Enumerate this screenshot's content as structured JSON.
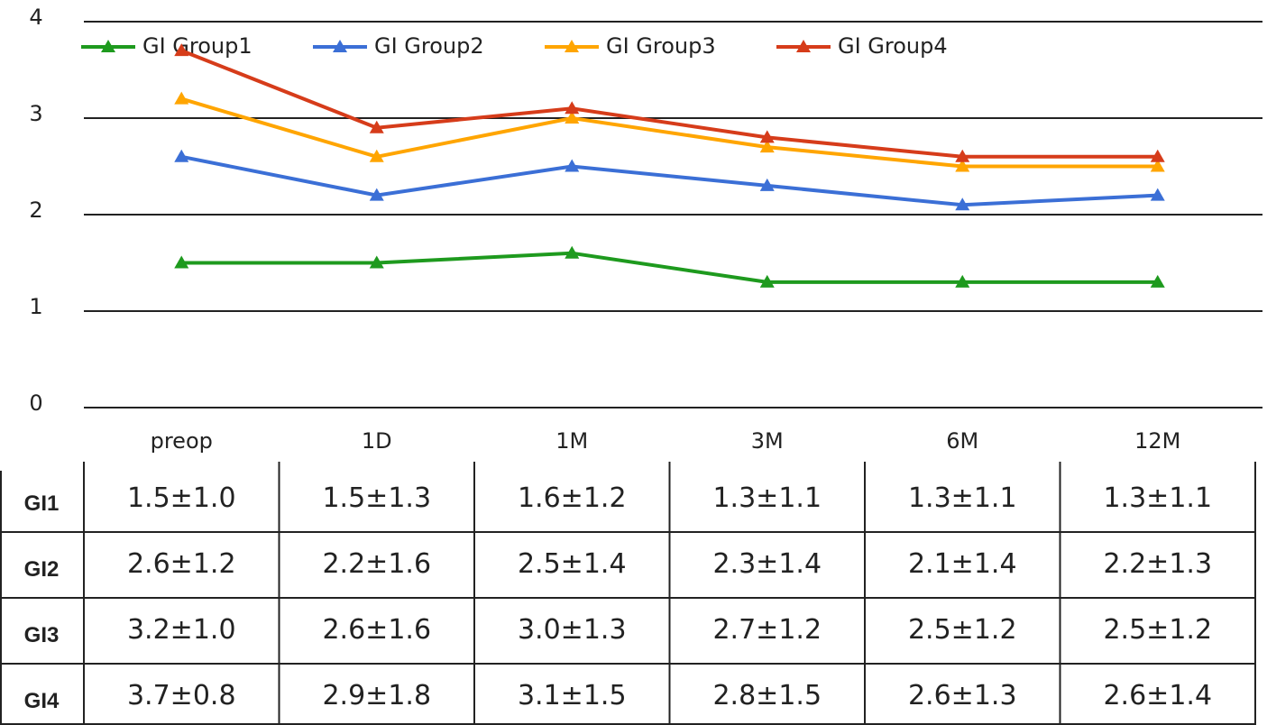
{
  "chart_data": {
    "type": "line",
    "categories": [
      "preop",
      "1D",
      "1M",
      "3M",
      "6M",
      "12M"
    ],
    "series": [
      {
        "name": "GI Group1",
        "color": "#1e9a1e",
        "values": [
          1.5,
          1.5,
          1.6,
          1.3,
          1.3,
          1.3
        ]
      },
      {
        "name": "GI Group2",
        "color": "#3b6fd6",
        "values": [
          2.6,
          2.2,
          2.5,
          2.3,
          2.1,
          2.2
        ]
      },
      {
        "name": "GI Group3",
        "color": "#ffa500",
        "values": [
          3.2,
          2.6,
          3.0,
          2.7,
          2.5,
          2.5
        ]
      },
      {
        "name": "GI Group4",
        "color": "#d63c1a",
        "values": [
          3.7,
          2.9,
          3.1,
          2.8,
          2.6,
          2.6
        ]
      }
    ],
    "ylim": [
      0,
      4
    ],
    "yticks": [
      0,
      1,
      2,
      3,
      4
    ],
    "grid": true,
    "legend": "top-left"
  },
  "table": {
    "rows": [
      {
        "label": "GI1",
        "cells": [
          "1.5±1.0",
          "1.5±1.3",
          "1.6±1.2",
          "1.3±1.1",
          "1.3±1.1",
          "1.3±1.1"
        ]
      },
      {
        "label": "GI2",
        "cells": [
          "2.6±1.2",
          "2.2±1.6",
          "2.5±1.4",
          "2.3±1.4",
          "2.1±1.4",
          "2.2±1.3"
        ]
      },
      {
        "label": "GI3",
        "cells": [
          "3.2±1.0",
          "2.6±1.6",
          "3.0±1.3",
          "2.7±1.2",
          "2.5±1.2",
          "2.5±1.2"
        ]
      },
      {
        "label": "GI4",
        "cells": [
          "3.7±0.8",
          "2.9±1.8",
          "3.1±1.5",
          "2.8±1.5",
          "2.6±1.3",
          "2.6±1.4"
        ]
      }
    ]
  }
}
